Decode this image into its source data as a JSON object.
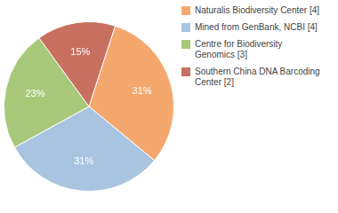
{
  "chart_data": {
    "type": "pie",
    "categories": [
      "Naturalis Biodiversity Center [4]",
      "Mined from GenBank, NCBI [4]",
      "Centre for Biodiversity\nGenomics [3]",
      "Southern China DNA Barcoding\nCenter [2]"
    ],
    "values": [
      31,
      31,
      23,
      15
    ],
    "value_labels": [
      "31%",
      "31%",
      "23%",
      "15%"
    ],
    "colors": [
      "#F5A86E",
      "#A8C4E0",
      "#A8C87A",
      "#C87060"
    ],
    "data_labels": true,
    "legend": "right"
  }
}
